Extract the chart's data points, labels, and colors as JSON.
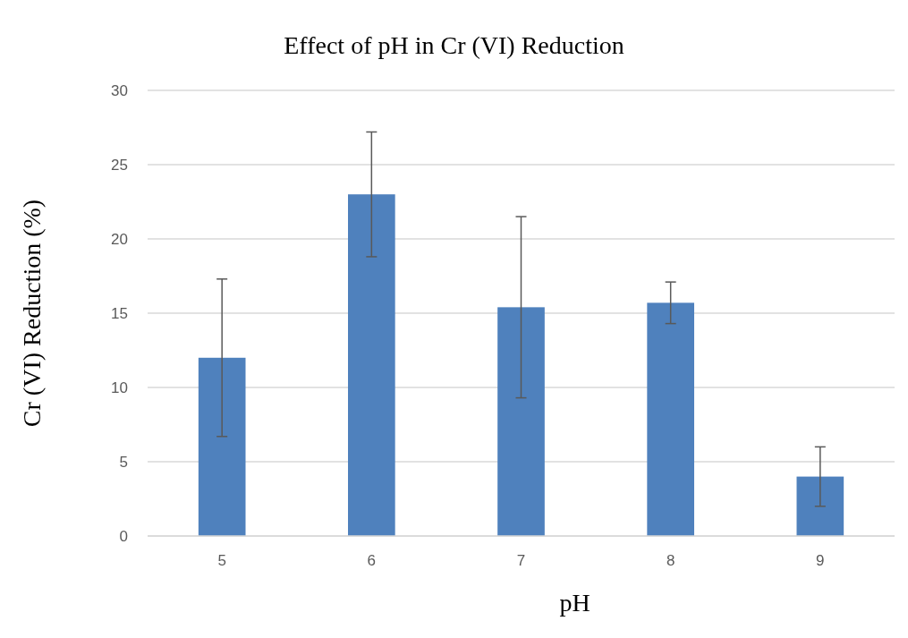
{
  "chart_data": {
    "type": "bar",
    "title": "Effect of pH in Cr (VI) Reduction",
    "xlabel": "pH",
    "ylabel": "Cr (VI) Reduction (%)",
    "categories": [
      "5",
      "6",
      "7",
      "8",
      "9"
    ],
    "values": [
      12.0,
      23.0,
      15.4,
      15.7,
      4.0
    ],
    "errors": [
      5.3,
      4.2,
      6.1,
      1.4,
      2.0
    ],
    "color": "#4f81bd",
    "ylim": [
      0,
      30
    ],
    "yticks": [
      0,
      5,
      10,
      15,
      20,
      25,
      30
    ],
    "grid": "y"
  }
}
